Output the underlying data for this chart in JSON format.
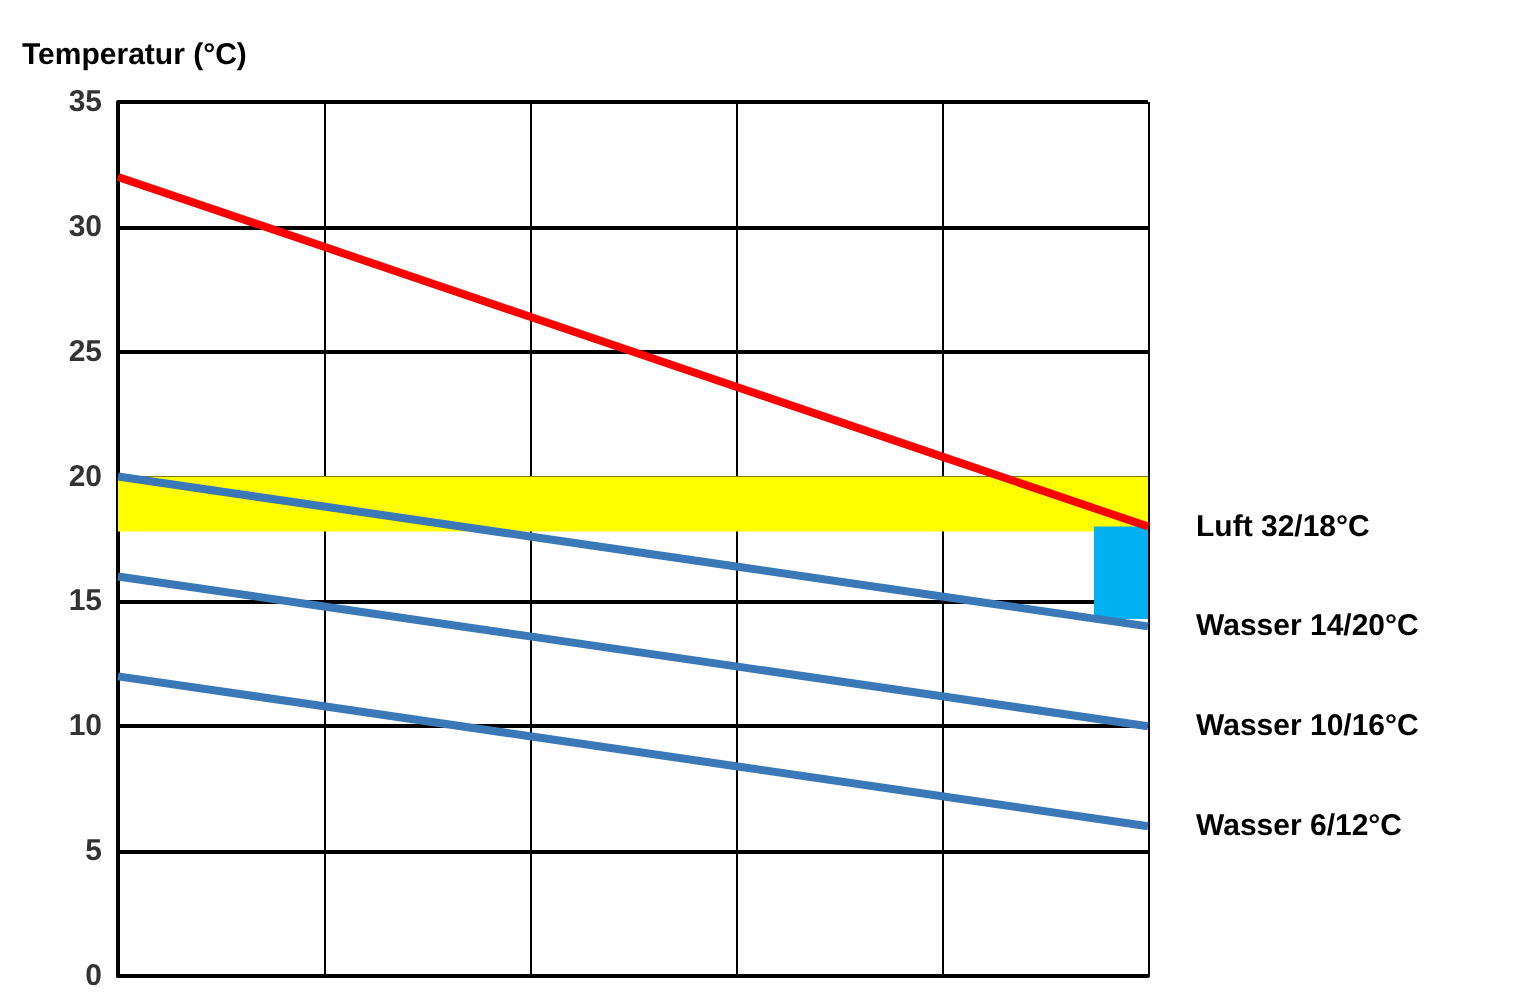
{
  "chart_data": {
    "type": "line",
    "ylabel": "Temperatur (°C)",
    "categories": [
      null,
      null,
      null,
      null,
      null,
      null
    ],
    "ylim": [
      0,
      35
    ],
    "yticks": [
      0,
      5,
      10,
      15,
      20,
      25,
      30,
      35
    ],
    "grid": true,
    "tick_labels": "y",
    "legend": false,
    "marker": "none",
    "line_style": "solid",
    "bands": [
      {
        "axis": "y",
        "from": 17.8,
        "to": 20,
        "color": "#ffff00"
      }
    ],
    "series": [
      {
        "name": "Luft 32/18°C",
        "color": "#ff0000",
        "values": [
          32,
          29.2,
          26.4,
          23.6,
          20.8,
          18
        ]
      },
      {
        "name": "Wasser 14/20°C",
        "color": "#3a78b8",
        "values": [
          20,
          18.8,
          17.6,
          16.4,
          15.2,
          14
        ]
      },
      {
        "name": "Wasser 10/16°C",
        "color": "#3a78b8",
        "values": [
          16,
          14.8,
          13.6,
          12.4,
          11.2,
          10
        ]
      },
      {
        "name": "Wasser 6/12°C",
        "color": "#3a78b8",
        "values": [
          12,
          10.8,
          9.6,
          8.4,
          7.2,
          6
        ]
      },
      {
        "type": "bar",
        "color": "#00b0f0",
        "base": [
          null,
          null,
          null,
          null,
          null,
          14.3
        ],
        "values": [
          null,
          null,
          null,
          null,
          null,
          3.7
        ]
      }
    ]
  }
}
